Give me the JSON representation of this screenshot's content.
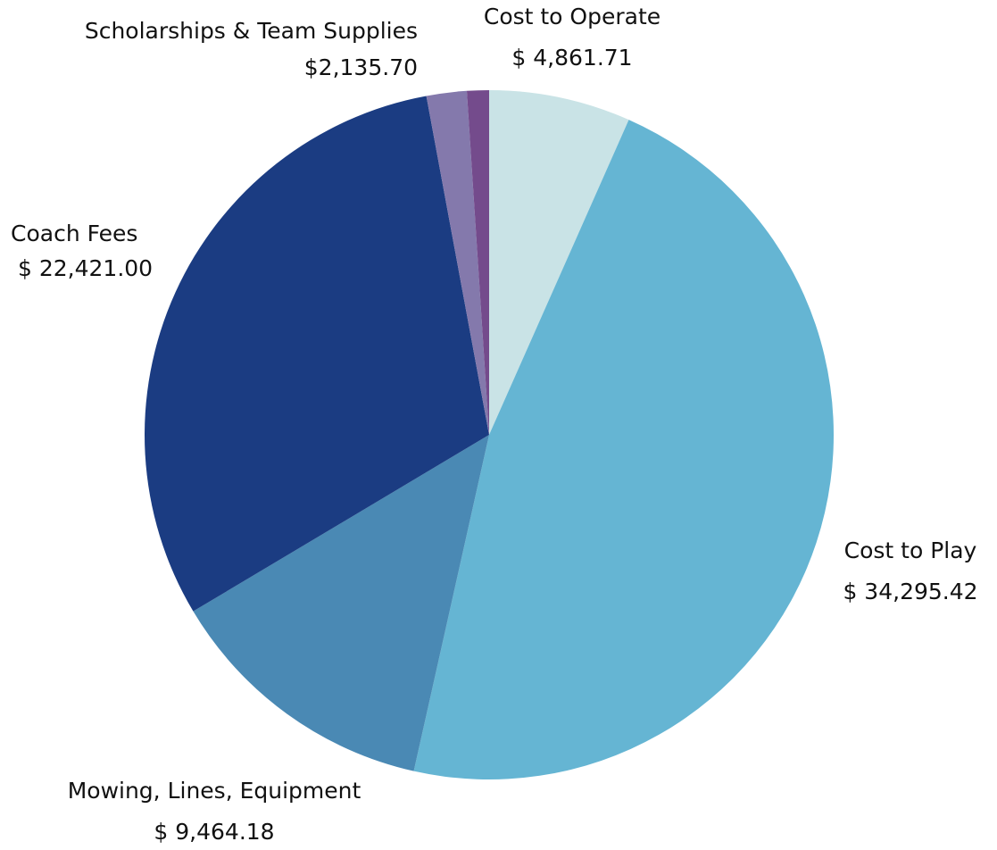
{
  "chart_data": {
    "type": "pie",
    "categories": [
      "Cost to Operate",
      "Cost to Play",
      "Mowing, Lines, Equipment",
      "Coach Fees",
      null,
      null
    ],
    "values": [
      4861.71,
      34295.42,
      9464.18,
      22421.0,
      1380,
      755
    ],
    "value_labels": [
      "$ 4,861.71",
      "$ 34,295.42",
      "$ 9,464.18",
      "$ 22,421.00",
      null,
      null
    ],
    "colors": [
      "#c9e3e6",
      "#65b5d3",
      "#4a89b4",
      "#1b3c82",
      "#8479ac",
      "#744b8c"
    ],
    "annotations": [
      {
        "text": "Scholarships & Team Supplies",
        "value_label": "$2,135.70"
      }
    ]
  }
}
